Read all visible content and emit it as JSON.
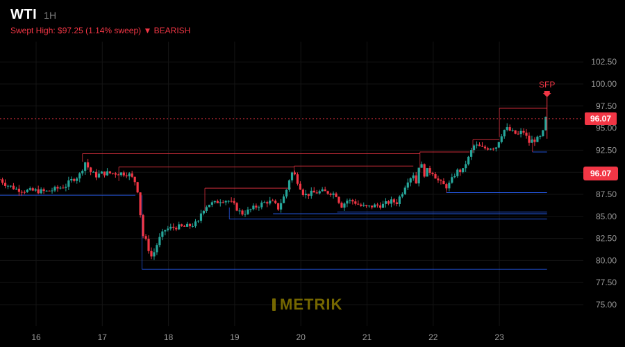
{
  "header": {
    "symbol": "WTI",
    "interval": "1H",
    "subtitle": "Swept High: $97.25 (1.14% sweep) ▼ BEARISH"
  },
  "watermark": "METRIK",
  "colors": {
    "up": "#26a69a",
    "down": "#f23645",
    "support": "#2962ff",
    "resistance": "#f23645",
    "background": "#000000"
  },
  "chart_data": {
    "type": "candlestick",
    "title": "",
    "xlabel": "",
    "ylabel": "",
    "x_ticks": [
      "16",
      "17",
      "18",
      "19",
      "20",
      "21",
      "22",
      "23"
    ],
    "y_ticks": [
      "75.00",
      "77.50",
      "80.00",
      "82.50",
      "85.00",
      "87.50",
      "90.00",
      "92.50",
      "95.00",
      "97.50",
      "100.00",
      "102.50"
    ],
    "xlim": [
      15.45,
      24.9
    ],
    "ylim": [
      72.5,
      105.0
    ],
    "grid": true,
    "last_price": "96.07",
    "last_price_value": 96.07,
    "annotation": {
      "text": "SFP",
      "x": 23.72,
      "y": 98.6
    },
    "close_path": [
      [
        15.45,
        89.2
      ],
      [
        15.55,
        88.6
      ],
      [
        15.7,
        88.1
      ],
      [
        15.85,
        87.9
      ],
      [
        16.0,
        87.9
      ],
      [
        16.15,
        87.8
      ],
      [
        16.3,
        88.1
      ],
      [
        16.45,
        88.5
      ],
      [
        16.55,
        89.2
      ],
      [
        16.65,
        89.6
      ],
      [
        16.75,
        91.3
      ],
      [
        16.8,
        90.2
      ],
      [
        16.9,
        89.6
      ],
      [
        17.0,
        89.9
      ],
      [
        17.15,
        89.9
      ],
      [
        17.3,
        89.9
      ],
      [
        17.4,
        89.8
      ],
      [
        17.5,
        88.9
      ],
      [
        17.55,
        87.5
      ],
      [
        17.6,
        83.0
      ],
      [
        17.65,
        82.4
      ],
      [
        17.7,
        81.3
      ],
      [
        17.75,
        80.3
      ],
      [
        17.85,
        82.3
      ],
      [
        17.95,
        83.5
      ],
      [
        18.1,
        83.8
      ],
      [
        18.25,
        83.8
      ],
      [
        18.35,
        84.0
      ],
      [
        18.45,
        84.3
      ],
      [
        18.5,
        85.6
      ],
      [
        18.6,
        86.4
      ],
      [
        18.7,
        86.5
      ],
      [
        18.8,
        86.9
      ],
      [
        18.9,
        86.8
      ],
      [
        19.0,
        86.2
      ],
      [
        19.1,
        85.3
      ],
      [
        19.2,
        85.6
      ],
      [
        19.3,
        86.0
      ],
      [
        19.4,
        86.4
      ],
      [
        19.5,
        86.7
      ],
      [
        19.6,
        86.5
      ],
      [
        19.65,
        85.8
      ],
      [
        19.7,
        86.6
      ],
      [
        19.75,
        87.3
      ],
      [
        19.8,
        88.4
      ],
      [
        19.85,
        90.0
      ],
      [
        19.9,
        89.8
      ],
      [
        20.0,
        88.2
      ],
      [
        20.05,
        87.4
      ],
      [
        20.15,
        87.6
      ],
      [
        20.3,
        87.8
      ],
      [
        20.45,
        87.7
      ],
      [
        20.55,
        87.4
      ],
      [
        20.6,
        86.1
      ],
      [
        20.7,
        86.8
      ],
      [
        20.8,
        86.7
      ],
      [
        20.9,
        86.2
      ],
      [
        21.0,
        86.0
      ],
      [
        21.1,
        86.2
      ],
      [
        21.25,
        86.3
      ],
      [
        21.35,
        86.7
      ],
      [
        21.45,
        86.6
      ],
      [
        21.55,
        88.0
      ],
      [
        21.6,
        89.0
      ],
      [
        21.7,
        89.8
      ],
      [
        21.75,
        88.6
      ],
      [
        21.8,
        91.8
      ],
      [
        21.85,
        89.6
      ],
      [
        21.9,
        90.2
      ],
      [
        22.0,
        90.0
      ],
      [
        22.05,
        89.3
      ],
      [
        22.1,
        88.8
      ],
      [
        22.2,
        88.4
      ],
      [
        22.25,
        88.7
      ],
      [
        22.35,
        90.1
      ],
      [
        22.45,
        90.2
      ],
      [
        22.5,
        91.2
      ],
      [
        22.55,
        91.8
      ],
      [
        22.6,
        93.0
      ],
      [
        22.65,
        93.0
      ],
      [
        22.75,
        92.7
      ],
      [
        22.85,
        92.8
      ],
      [
        22.95,
        92.9
      ],
      [
        23.05,
        94.6
      ],
      [
        23.1,
        95.0
      ],
      [
        23.2,
        94.5
      ],
      [
        23.3,
        94.2
      ],
      [
        23.35,
        94.8
      ],
      [
        23.45,
        93.4
      ],
      [
        23.5,
        93.6
      ],
      [
        23.6,
        93.8
      ],
      [
        23.65,
        94.2
      ],
      [
        23.7,
        96.07
      ]
    ],
    "levels": [
      {
        "kind": "resistance",
        "x1": 16.7,
        "x2": 21.8,
        "y": 92.1
      },
      {
        "kind": "resistance",
        "x1": 17.25,
        "x2": 19.9,
        "y": 90.6
      },
      {
        "kind": "resistance",
        "x1": 19.9,
        "x2": 21.7,
        "y": 90.7
      },
      {
        "kind": "resistance",
        "x1": 18.55,
        "x2": 19.85,
        "y": 88.2
      },
      {
        "kind": "resistance",
        "x1": 21.8,
        "x2": 22.55,
        "y": 92.3
      },
      {
        "kind": "resistance",
        "x1": 22.6,
        "x2": 23.0,
        "y": 93.7
      },
      {
        "kind": "resistance",
        "x1": 23.0,
        "x2": 23.72,
        "y": 97.25
      },
      {
        "kind": "support",
        "x1": 15.45,
        "x2": 17.5,
        "y": 87.4
      },
      {
        "kind": "support",
        "x1": 17.6,
        "x2": 23.72,
        "y": 79.0
      },
      {
        "kind": "support",
        "x1": 18.92,
        "x2": 23.72,
        "y": 84.7
      },
      {
        "kind": "support",
        "x1": 19.58,
        "x2": 23.72,
        "y": 85.3
      },
      {
        "kind": "support",
        "x1": 20.55,
        "x2": 23.72,
        "y": 85.5
      },
      {
        "kind": "support",
        "x1": 22.2,
        "x2": 23.72,
        "y": 87.7
      },
      {
        "kind": "support",
        "x1": 23.5,
        "x2": 23.72,
        "y": 92.3
      }
    ]
  }
}
